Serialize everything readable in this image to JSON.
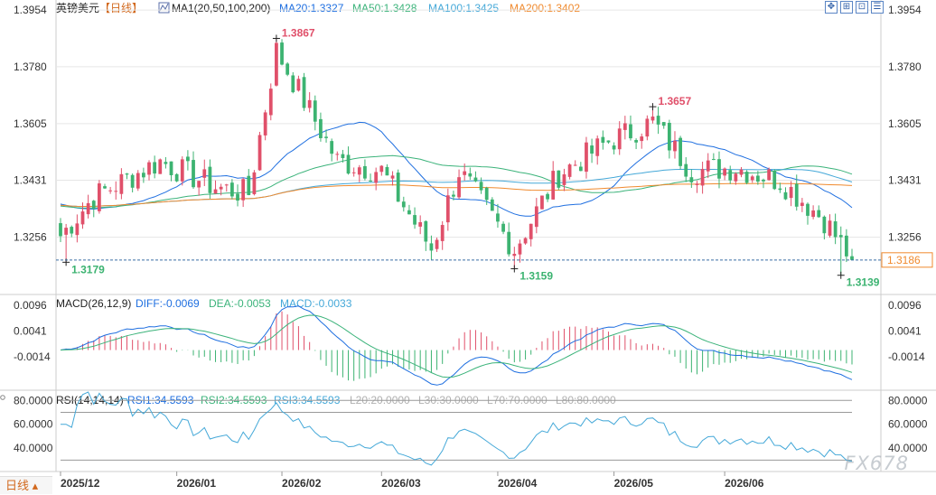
{
  "header": {
    "symbol": "英镑美元",
    "period": "【日线】",
    "ma_label": "MA1(20,50,100,200)",
    "ma": [
      {
        "label": "MA20:1.3327",
        "color": "#1f6fe0"
      },
      {
        "label": "MA50:1.3428",
        "color": "#3bb37a"
      },
      {
        "label": "MA100:1.3425",
        "color": "#44a8d8"
      },
      {
        "label": "MA200:1.3402",
        "color": "#f08a2e"
      }
    ],
    "toolbar_icons": [
      "move-icon",
      "bar-zoom-icon",
      "maximize-icon",
      "settings-icon"
    ]
  },
  "colors": {
    "up": "#e0506a",
    "down": "#3cb371",
    "grid": "#e6e6e6",
    "axis_text": "#333333",
    "current": "#f08a2e",
    "dash": "#3a6ea5"
  },
  "main_axis": {
    "ticks": [
      "1.3954",
      "1.3780",
      "1.3605",
      "1.3431",
      "1.3256"
    ],
    "current_price": "1.3186",
    "range": [
      1.308,
      1.3985
    ]
  },
  "annotations": [
    {
      "text": "1.3867",
      "value": 1.3867,
      "date_index": 39,
      "kind": "high"
    },
    {
      "text": "1.3179",
      "value": 1.3179,
      "date_index": 1,
      "kind": "low"
    },
    {
      "text": "1.3159",
      "value": 1.3159,
      "date_index": 82,
      "kind": "low"
    },
    {
      "text": "1.3657",
      "value": 1.3657,
      "date_index": 107,
      "kind": "high"
    },
    {
      "text": "1.3139",
      "value": 1.3139,
      "date_index": 141,
      "kind": "low"
    }
  ],
  "macd": {
    "label": "MACD(26,12,9)",
    "diff_label": "DIFF:-0.0069",
    "dea_label": "DEA:-0.0053",
    "macd_label": "MACD:-0.0033",
    "ticks": [
      "0.0096",
      "0.0041",
      "-0.0014"
    ],
    "range": [
      -0.0082,
      0.0115
    ]
  },
  "rsi": {
    "label": "RSI(14,14,14)",
    "values": [
      "RSI1:34.5593",
      "RSI2:34.5593",
      "RSI3:34.5593"
    ],
    "levels": [
      "L20:20.0000",
      "L30:30.0000",
      "L70:70.0000",
      "L80:80.0000"
    ],
    "ticks": [
      "80.0000",
      "60.0000",
      "40.0000"
    ],
    "range": [
      22,
      87
    ]
  },
  "x_axis": {
    "labels": [
      "2025/12",
      "2026/01",
      "2026/02",
      "2026/03",
      "2026/04",
      "2026/05",
      "2026/06"
    ],
    "label_indices": [
      0,
      21,
      40,
      58,
      79,
      100,
      120
    ]
  },
  "period_button": "日线",
  "watermark": "FX678",
  "chart_data": {
    "type": "candlestick",
    "title": "英镑美元【日线】",
    "series_ma": [
      "MA20",
      "MA50",
      "MA100",
      "MA200"
    ],
    "key_points": [
      {
        "date_index": 1,
        "value": 1.3179
      },
      {
        "date_index": 39,
        "value": 1.3867
      },
      {
        "date_index": 82,
        "value": 1.3159
      },
      {
        "date_index": 107,
        "value": 1.3657
      },
      {
        "date_index": 141,
        "value": 1.3139
      },
      {
        "date_index": 143,
        "value": 1.3186
      }
    ],
    "close_anchors": [
      [
        0,
        1.326
      ],
      [
        6,
        1.338
      ],
      [
        18,
        1.349
      ],
      [
        28,
        1.341
      ],
      [
        34,
        1.339
      ],
      [
        39,
        1.383
      ],
      [
        50,
        1.349
      ],
      [
        58,
        1.346
      ],
      [
        67,
        1.322
      ],
      [
        72,
        1.346
      ],
      [
        82,
        1.322
      ],
      [
        90,
        1.345
      ],
      [
        99,
        1.355
      ],
      [
        107,
        1.361
      ],
      [
        114,
        1.346
      ],
      [
        122,
        1.347
      ],
      [
        130,
        1.343
      ],
      [
        138,
        1.331
      ],
      [
        143,
        1.3186
      ]
    ],
    "ylim": [
      1.308,
      1.3985
    ],
    "n_bars": 144,
    "grid": true
  }
}
